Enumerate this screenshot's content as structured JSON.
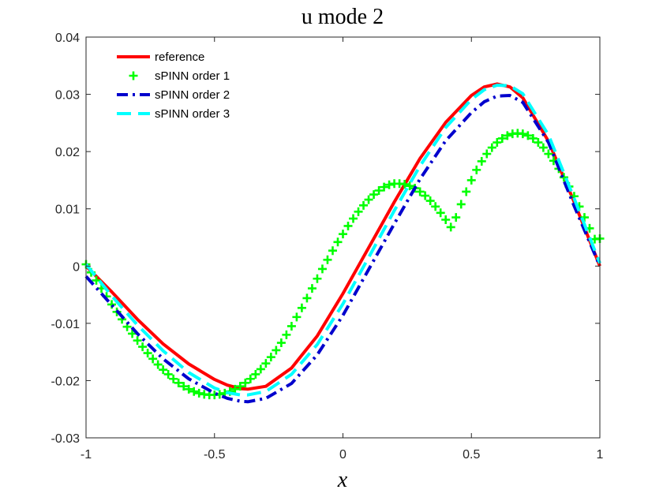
{
  "chart_data": {
    "type": "line",
    "title": "u mode 2",
    "xlabel": "x",
    "ylabel": "",
    "xlim": [
      -1,
      1
    ],
    "ylim": [
      -0.03,
      0.04
    ],
    "xticks": [
      -1,
      -0.5,
      0,
      0.5,
      1
    ],
    "xtick_labels": [
      "-1",
      "-0.5",
      "0",
      "0.5",
      "1"
    ],
    "yticks": [
      -0.03,
      -0.02,
      -0.01,
      0,
      0.01,
      0.02,
      0.03,
      0.04
    ],
    "ytick_labels": [
      "-0.03",
      "-0.02",
      "-0.01",
      "0",
      "0.01",
      "0.02",
      "0.03",
      "0.04"
    ],
    "grid": false,
    "legend_position": "top-left",
    "series": [
      {
        "name": "reference",
        "style": "solid",
        "marker": "none",
        "color": "#ff0000",
        "x": [
          -1,
          -0.9,
          -0.8,
          -0.7,
          -0.6,
          -0.5,
          -0.45,
          -0.4,
          -0.37,
          -0.3,
          -0.2,
          -0.1,
          0,
          0.1,
          0.2,
          0.3,
          0.4,
          0.5,
          0.55,
          0.6,
          0.65,
          0.7,
          0.8,
          0.9,
          1
        ],
        "y": [
          0,
          -0.0045,
          -0.0093,
          -0.0136,
          -0.0171,
          -0.0198,
          -0.0208,
          -0.0214,
          -0.0215,
          -0.021,
          -0.0178,
          -0.0122,
          -0.0048,
          0.0032,
          0.0112,
          0.0188,
          0.0251,
          0.0298,
          0.0313,
          0.0318,
          0.0313,
          0.0294,
          0.0218,
          0.0112,
          0
        ]
      },
      {
        "name": "sPINN order 1",
        "style": "none",
        "marker": "plus",
        "color": "#00ff00",
        "x": [
          -1,
          -0.98,
          -0.96,
          -0.94,
          -0.92,
          -0.9,
          -0.88,
          -0.86,
          -0.84,
          -0.82,
          -0.8,
          -0.78,
          -0.76,
          -0.74,
          -0.72,
          -0.7,
          -0.68,
          -0.66,
          -0.64,
          -0.62,
          -0.6,
          -0.58,
          -0.56,
          -0.54,
          -0.52,
          -0.5,
          -0.48,
          -0.46,
          -0.44,
          -0.42,
          -0.4,
          -0.38,
          -0.36,
          -0.34,
          -0.32,
          -0.3,
          -0.28,
          -0.26,
          -0.24,
          -0.22,
          -0.2,
          -0.18,
          -0.16,
          -0.14,
          -0.12,
          -0.1,
          -0.08,
          -0.06,
          -0.04,
          -0.02,
          0,
          0.02,
          0.04,
          0.06,
          0.08,
          0.1,
          0.12,
          0.14,
          0.16,
          0.18,
          0.2,
          0.22,
          0.24,
          0.26,
          0.28,
          0.3,
          0.32,
          0.34,
          0.36,
          0.38,
          0.4,
          0.42,
          0.44,
          0.46,
          0.48,
          0.5,
          0.52,
          0.54,
          0.56,
          0.58,
          0.6,
          0.62,
          0.64,
          0.66,
          0.68,
          0.7,
          0.72,
          0.74,
          0.76,
          0.78,
          0.8,
          0.82,
          0.84,
          0.86,
          0.88,
          0.9,
          0.92,
          0.94,
          0.96,
          0.98,
          1
        ],
        "y": [
          0.0003,
          -0.0011,
          -0.0025,
          -0.0039,
          -0.0053,
          -0.0067,
          -0.008,
          -0.0093,
          -0.0106,
          -0.0118,
          -0.013,
          -0.0141,
          -0.0152,
          -0.0162,
          -0.0172,
          -0.0181,
          -0.0189,
          -0.0197,
          -0.0204,
          -0.021,
          -0.0215,
          -0.0219,
          -0.0222,
          -0.0224,
          -0.0225,
          -0.0225,
          -0.0224,
          -0.0222,
          -0.0219,
          -0.0215,
          -0.021,
          -0.0204,
          -0.0197,
          -0.0189,
          -0.018,
          -0.017,
          -0.0159,
          -0.0147,
          -0.0134,
          -0.012,
          -0.0105,
          -0.0089,
          -0.0073,
          -0.0056,
          -0.0039,
          -0.0022,
          -0.0005,
          0.0011,
          0.0027,
          0.0042,
          0.0056,
          0.007,
          0.0083,
          0.0095,
          0.0106,
          0.0116,
          0.0125,
          0.0132,
          0.0138,
          0.0142,
          0.0144,
          0.0144,
          0.0143,
          0.014,
          0.0136,
          0.013,
          0.0123,
          0.0114,
          0.0104,
          0.0093,
          0.0081,
          0.0068,
          0.0085,
          0.0108,
          0.013,
          0.015,
          0.0168,
          0.0183,
          0.0196,
          0.0207,
          0.0216,
          0.0223,
          0.0228,
          0.0231,
          0.0232,
          0.0231,
          0.0228,
          0.0223,
          0.0216,
          0.0207,
          0.0196,
          0.0184,
          0.017,
          0.0155,
          0.0139,
          0.0122,
          0.0104,
          0.0085,
          0.0066,
          0.0047,
          0.0048
        ]
      },
      {
        "name": "sPINN order 2",
        "style": "dashdot",
        "marker": "none",
        "color": "#0000cd",
        "x": [
          -1,
          -0.9,
          -0.8,
          -0.7,
          -0.6,
          -0.5,
          -0.45,
          -0.4,
          -0.37,
          -0.3,
          -0.2,
          -0.1,
          0,
          0.1,
          0.2,
          0.3,
          0.4,
          0.5,
          0.55,
          0.6,
          0.65,
          0.7,
          0.8,
          0.9,
          1
        ],
        "y": [
          -0.0018,
          -0.0068,
          -0.0118,
          -0.0162,
          -0.0197,
          -0.0222,
          -0.0231,
          -0.0236,
          -0.0237,
          -0.0231,
          -0.0205,
          -0.0155,
          -0.0086,
          -0.0006,
          0.0074,
          0.0152,
          0.0219,
          0.0268,
          0.0287,
          0.0297,
          0.0298,
          0.0286,
          0.0216,
          0.0105,
          0
        ]
      },
      {
        "name": "sPINN order 3",
        "style": "dashed",
        "marker": "none",
        "color": "#00ffff",
        "x": [
          -1,
          -0.9,
          -0.8,
          -0.7,
          -0.6,
          -0.5,
          -0.45,
          -0.4,
          -0.37,
          -0.3,
          -0.2,
          -0.1,
          0,
          0.1,
          0.2,
          0.3,
          0.4,
          0.5,
          0.55,
          0.6,
          0.65,
          0.7,
          0.8,
          0.9,
          1
        ],
        "y": [
          0.0003,
          -0.0052,
          -0.0103,
          -0.0148,
          -0.0186,
          -0.0213,
          -0.0221,
          -0.0225,
          -0.0225,
          -0.0219,
          -0.0189,
          -0.0137,
          -0.0066,
          0.0015,
          0.0097,
          0.0175,
          0.0242,
          0.0291,
          0.0308,
          0.0316,
          0.0315,
          0.0301,
          0.0229,
          0.0118,
          0.0005
        ]
      }
    ]
  }
}
